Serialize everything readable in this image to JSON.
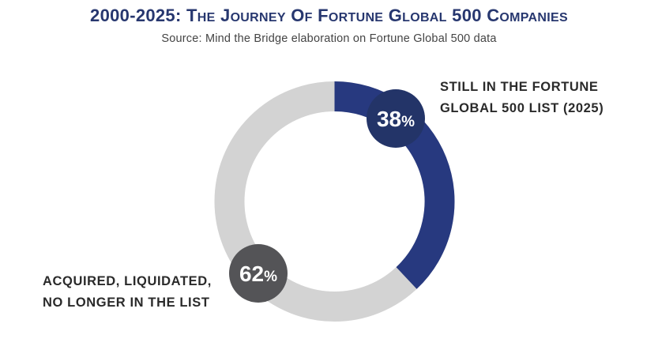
{
  "header": {
    "title_year": "2000-2025:",
    "title_words": [
      {
        "big": "T",
        "small": "HE"
      },
      {
        "big": "J",
        "small": "OURNEY"
      },
      {
        "big": "O",
        "small": "F"
      },
      {
        "big": "F",
        "small": "ORTUNE"
      },
      {
        "big": "G",
        "small": "LOBAL"
      },
      {
        "big": "500",
        "small": ""
      },
      {
        "big": "C",
        "small": "OMPANIES"
      }
    ],
    "title_full": "2000-2025: The Journey of Fortune Global 500 Companies",
    "subtitle": "Source: Mind the Bridge elaboration on Fortune Global 500 data"
  },
  "colors": {
    "title": "#27376f",
    "still_in_list": "#27397f",
    "still_badge": "#233468",
    "no_longer": "#d3d3d3",
    "no_longer_badge": "#545457"
  },
  "chart_data": {
    "type": "pie",
    "donut": true,
    "title": "2000-2025: The Journey of Fortune Global 500 Companies",
    "subtitle": "Source: Mind the Bridge elaboration on Fortune Global 500 data",
    "categories": [
      "Still in the Fortune Global 500 list (2025)",
      "Acquired, liquidated, no longer in the list"
    ],
    "values": [
      38,
      62
    ],
    "unit": "%",
    "labels": [
      {
        "value": "38",
        "unit": "%",
        "text_lines": [
          "STILL IN THE FORTUNE",
          "GLOBAL 500 LIST (2025)"
        ]
      },
      {
        "value": "62",
        "unit": "%",
        "text_lines": [
          "ACQUIRED, LIQUIDATED,",
          "NO LONGER IN THE LIST"
        ]
      }
    ],
    "legend": "none (direct labels)"
  }
}
